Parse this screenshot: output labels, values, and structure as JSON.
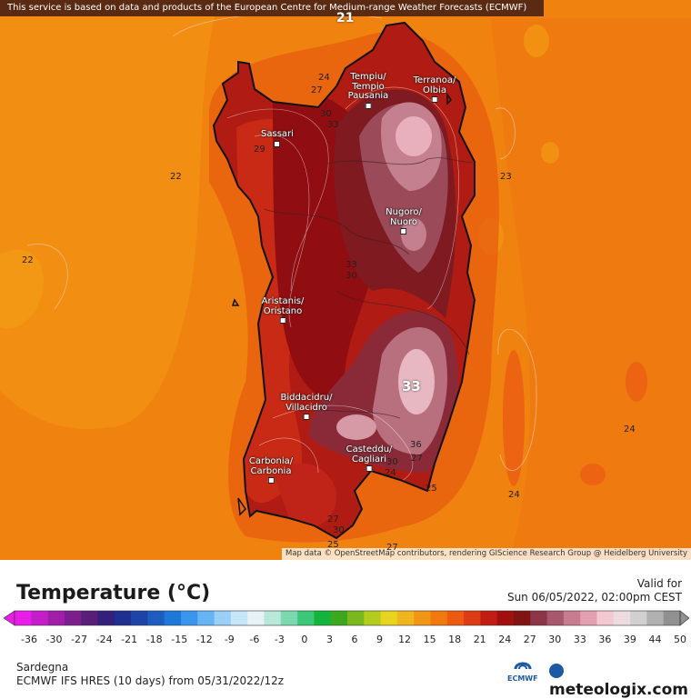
{
  "banner": "This service is based on data and products of the European Centre for Medium-range Weather Forecasts (ECMWF)",
  "attribution": "Map data © OpenStreetMap contributors, rendering GIScience Research Group @ Heidelberg University",
  "cities": [
    {
      "id": "tempio",
      "line1": "Tempiu/",
      "line2": "Tempio",
      "line3": "Pausania"
    },
    {
      "id": "olbia",
      "line1": "Terranoa/",
      "line2": "Olbia",
      "line3": ""
    },
    {
      "id": "sassari",
      "line1": "Sassari",
      "line2": "",
      "line3": ""
    },
    {
      "id": "nuoro",
      "line1": "Nugoro/",
      "line2": "Nuoro",
      "line3": ""
    },
    {
      "id": "oristano",
      "line1": "Aristanis/",
      "line2": "Oristano",
      "line3": ""
    },
    {
      "id": "villacidro",
      "line1": "Biddacidru/",
      "line2": "Villacidro",
      "line3": ""
    },
    {
      "id": "cagliari",
      "line1": "Casteddu/",
      "line2": "Cagliari",
      "line3": ""
    },
    {
      "id": "carbonia",
      "line1": "Carbonia/",
      "line2": "Carbonia",
      "line3": ""
    }
  ],
  "contour_labels": [
    "21",
    "24",
    "27",
    "30",
    "33",
    "22",
    "29",
    "22",
    "23",
    "30",
    "33",
    "33",
    "36",
    "27",
    "30",
    "24",
    "25",
    "24",
    "24",
    "27",
    "30",
    "25",
    "27"
  ],
  "legend": {
    "title": "Temperature (°C)",
    "valid_label": "Valid for",
    "valid_time": "Sun 06/05/2022, 02:00pm CEST",
    "ticks": [
      "-36",
      "-30",
      "-27",
      "-24",
      "-21",
      "-18",
      "-15",
      "-12",
      "-9",
      "-6",
      "-3",
      "0",
      "3",
      "6",
      "9",
      "12",
      "15",
      "18",
      "21",
      "24",
      "27",
      "30",
      "33",
      "36",
      "39",
      "44",
      "50"
    ],
    "colors": [
      "#e81ee8",
      "#c41ec8",
      "#a01ea8",
      "#7c1e8c",
      "#581e78",
      "#32207a",
      "#1f2e8f",
      "#1e44a8",
      "#1e5cc0",
      "#1e78d8",
      "#3a96ec",
      "#66b4f4",
      "#9ad0f8",
      "#c8e6fa",
      "#e6f2f6",
      "#b8e8d8",
      "#7cd8b0",
      "#3cc878",
      "#14b43c",
      "#3ca81e",
      "#78b81e",
      "#b4cc1e",
      "#e6d41e",
      "#f0b41e",
      "#f09614",
      "#f0780f",
      "#ec5a0f",
      "#dc3c14",
      "#c01e14",
      "#a0100f",
      "#801414",
      "#8c3448",
      "#a8586c",
      "#c87c90",
      "#e4a0b0",
      "#f4c8d0",
      "#ecdce0",
      "#d0d0d0",
      "#b0b0b0",
      "#909090"
    ],
    "region": "Sardegna",
    "model": "ECMWF IFS HRES (10 days) from  05/31/2022/12z",
    "ecmwf_label": "ECMWF",
    "brand": "meteologix.com"
  }
}
